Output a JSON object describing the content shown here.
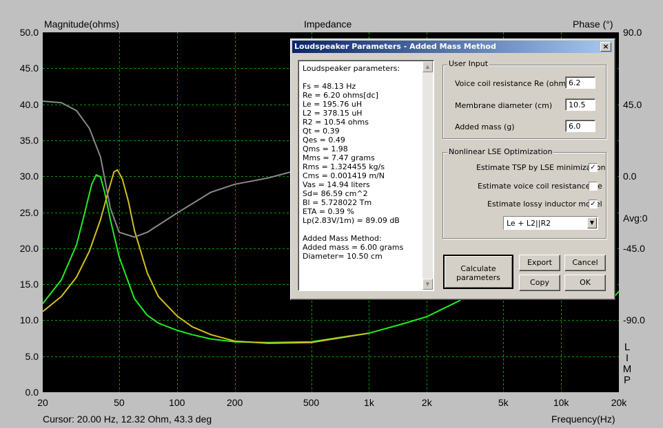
{
  "graph": {
    "left_title": "Magnitude(ohms)",
    "center_title": "Impedance",
    "right_title": "Phase (°)",
    "avg_label": "Avg:0",
    "limp_label": [
      "L",
      "I",
      "M",
      "P"
    ],
    "cursor_readout": "Cursor: 20.00 Hz, 12.32 Ohm, 43.3 deg",
    "x_axis_title": "Frequency(Hz)",
    "left_ticks": [
      "50.0",
      "45.0",
      "40.0",
      "35.0",
      "30.0",
      "25.0",
      "20.0",
      "15.0",
      "10.0",
      "5.0",
      "0.0"
    ],
    "right_ticks": [
      "90.0",
      "45.0",
      "0.0",
      "-45.0",
      "-90.0"
    ],
    "x_ticks": [
      "20",
      "50",
      "100",
      "200",
      "500",
      "1k",
      "2k",
      "5k",
      "10k",
      "20k"
    ],
    "colors": {
      "plot_bg": "#000000",
      "grid": "#00a000",
      "green_trace": "#22ee22",
      "yellow_trace": "#d4c020",
      "phase_trace": "#8a8a8a"
    }
  },
  "chart_data": {
    "type": "line",
    "title": "Impedance",
    "xlabel": "Frequency(Hz)",
    "ylabel": "Magnitude(ohms)",
    "y2label": "Phase (°)",
    "x_scale": "log",
    "xlim": [
      20,
      20000
    ],
    "ylim": [
      0,
      50
    ],
    "y2lim": [
      -135,
      90
    ],
    "grid": true,
    "series": [
      {
        "axis": "left",
        "color": "#22ee22",
        "x": [
          20,
          25,
          30,
          33,
          36,
          38,
          40,
          42,
          45,
          50,
          60,
          70,
          80,
          100,
          120,
          150,
          200,
          300,
          500,
          700,
          1000,
          1500,
          2000,
          3000
        ],
        "y": [
          12.3,
          15.6,
          20.5,
          24.8,
          28.9,
          30.2,
          29.9,
          27.8,
          24.0,
          18.8,
          13.0,
          10.7,
          9.6,
          8.6,
          8.0,
          7.4,
          7.0,
          6.9,
          7.0,
          7.6,
          8.2,
          9.5,
          10.5,
          12.8
        ]
      },
      {
        "axis": "left",
        "color": "#d4c020",
        "x": [
          20,
          25,
          30,
          35,
          40,
          44,
          47,
          49,
          52,
          56,
          60,
          70,
          80,
          100,
          120,
          150,
          200,
          300,
          500,
          1000
        ],
        "y": [
          11.2,
          13.3,
          16.0,
          19.6,
          24.0,
          28.0,
          30.6,
          30.9,
          29.6,
          26.4,
          22.5,
          16.6,
          13.3,
          10.6,
          9.1,
          8.0,
          7.1,
          6.8,
          6.9,
          8.2
        ]
      },
      {
        "axis": "right",
        "color": "#8a8a8a",
        "x": [
          20,
          25,
          30,
          35,
          40,
          45,
          50,
          60,
          70,
          100,
          150,
          200,
          300,
          400
        ],
        "y": [
          47,
          46,
          41,
          30,
          12,
          -20,
          -35,
          -38,
          -35,
          -23,
          -10,
          -5,
          -1,
          3
        ]
      },
      {
        "axis": "right",
        "color": "#22ee22",
        "x": [
          19000,
          20000
        ],
        "y": [
          -75,
          -72
        ]
      }
    ]
  },
  "dialog": {
    "title": "Loudspeaker Parameters - Added Mass Method",
    "close_glyph": "×",
    "params": [
      "Loudspeaker parameters:",
      "",
      "Fs  = 48.13 Hz",
      "Re  = 6.20 ohms[dc]",
      "Le  = 195.76 uH",
      "L2  = 378.15 uH",
      "R2  = 10.54 ohms",
      "Qt  = 0.39",
      "Qes = 0.49",
      "Qms = 1.98",
      "Mms = 7.47 grams",
      "Rms = 1.324455 kg/s",
      "Cms = 0.001419 m/N",
      "Vas = 14.94 liters",
      "Sd= 86.59 cm^2",
      "Bl  = 5.728022 Tm",
      "ETA = 0.39 %",
      "Lp(2.83V/1m) = 89.09 dB",
      "",
      "Added Mass Method:",
      "Added mass = 6.00 grams",
      "Diameter= 10.50 cm"
    ],
    "user_input": {
      "legend": "User Input",
      "re_label": "Voice coil resistance Re (ohms)",
      "re_value": "6.2",
      "diameter_label": "Membrane diameter (cm)",
      "diameter_value": "10.5",
      "mass_label": "Added mass (g)",
      "mass_value": "6.0"
    },
    "lse": {
      "legend": "Nonlinear LSE Optimization",
      "tsp_label": "Estimate TSP by LSE minimization",
      "tsp_checked": "✓",
      "re_label": "Estimate voice coil resistance Re",
      "re_checked": "",
      "inductor_label": "Estimate lossy inductor model",
      "inductor_checked": "✓",
      "model_value": "Le + L2||R2"
    },
    "buttons": {
      "calculate_line1": "Calculate",
      "calculate_line2": "parameters",
      "export": "Export",
      "cancel": "Cancel",
      "copy": "Copy",
      "ok": "OK"
    }
  }
}
